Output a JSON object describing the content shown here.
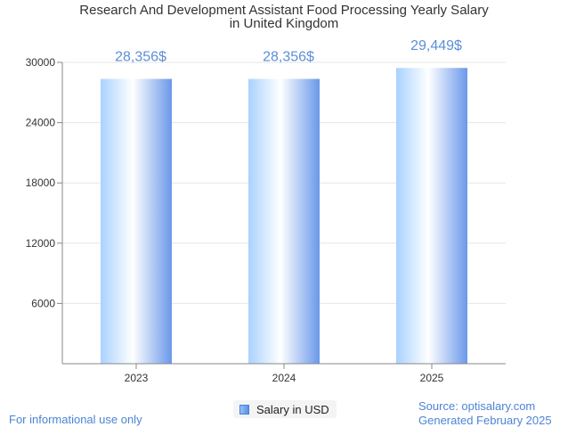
{
  "chart_data": {
    "type": "bar",
    "title_lines": [
      "Research And Development Assistant Food Processing Yearly Salary",
      "in United Kingdom"
    ],
    "categories": [
      "2023",
      "2024",
      "2025"
    ],
    "values": [
      28356,
      28356,
      29449
    ],
    "value_labels": [
      "28,356$",
      "28,356$",
      "29,449$"
    ],
    "series": [
      {
        "name": "Salary in USD",
        "values": [
          28356,
          28356,
          29449
        ]
      }
    ],
    "y_ticks": [
      "6000",
      "12000",
      "18000",
      "24000",
      "30000"
    ],
    "y_tick_values": [
      6000,
      12000,
      18000,
      24000,
      30000
    ],
    "ylim": [
      0,
      30000
    ],
    "grid": true,
    "legend_position": "bottom-center",
    "colors": {
      "bar_light": "#ffffff",
      "bar_mid": "#a9d2ff",
      "bar_dark": "#6a98ea",
      "label": "#5b8fd8",
      "axis": "#888888",
      "grid": "#e6e6e6"
    }
  },
  "footer": {
    "disclaimer": "For informational use only",
    "source": "Source: optisalary.com",
    "generated": "Generated February 2025"
  }
}
